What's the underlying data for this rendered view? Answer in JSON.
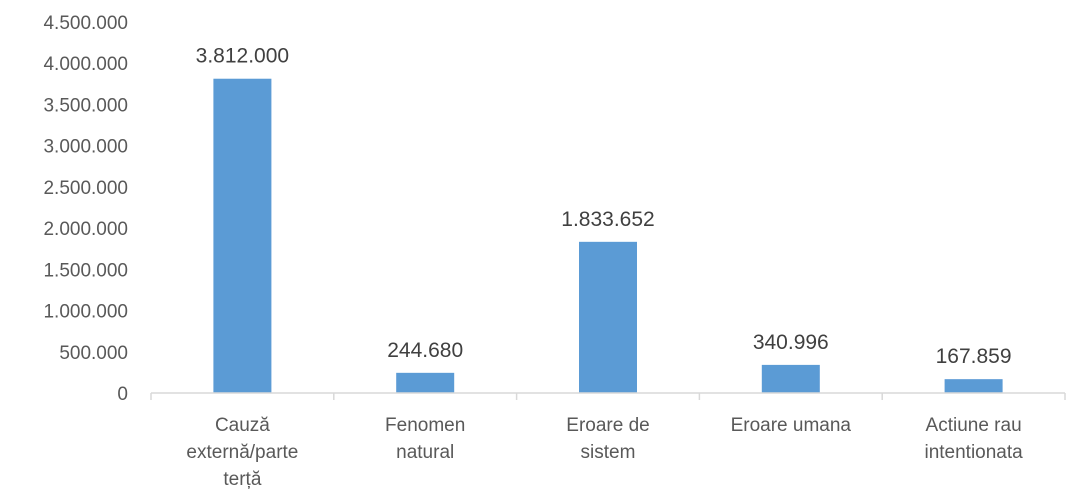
{
  "chart_data": {
    "type": "bar",
    "categories": [
      [
        "Cauză",
        "externă/parte",
        "terță"
      ],
      [
        "Fenomen",
        "natural"
      ],
      [
        "Eroare de",
        "sistem"
      ],
      [
        "Eroare umana"
      ],
      [
        "Actiune rau",
        "intentionata"
      ]
    ],
    "values": [
      3812000,
      244680,
      1833652,
      340996,
      167859
    ],
    "value_labels": [
      "3.812.000",
      "244.680",
      "1.833.652",
      "340.996",
      "167.859"
    ],
    "ylim": [
      0,
      4500000
    ],
    "yticks": [
      0,
      500000,
      1000000,
      1500000,
      2000000,
      2500000,
      3000000,
      3500000,
      4000000,
      4500000
    ],
    "ytick_labels": [
      "0",
      "500.000",
      "1.000.000",
      "1.500.000",
      "2.000.000",
      "2.500.000",
      "3.000.000",
      "3.500.000",
      "4.000.000",
      "4.500.000"
    ],
    "grid": false,
    "legend": "none",
    "bar_color": "#5b9bd5",
    "axis_color": "#d9d9d9"
  }
}
